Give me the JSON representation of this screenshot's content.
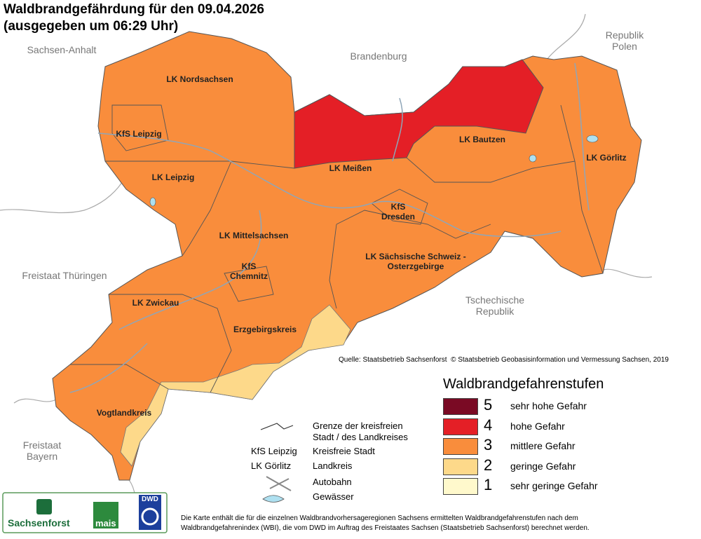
{
  "header": {
    "title": "Waldbrandgefährdung  für den  09.04.2026",
    "subtitle": "(ausgegeben um 06:29 Uhr)"
  },
  "neighbors": [
    "Sachsen-Anhalt",
    "Brandenburg",
    "Republik\nPolen",
    "Freistaat Thüringen",
    "Tschechische\nRepublik",
    "Freistaat\nBayern"
  ],
  "regions": [
    "LK Nordsachsen",
    "KfS Leipzig",
    "LK Leipzig",
    "LK Meißen",
    "LK Bautzen",
    "LK Görlitz",
    "KfS\nDresden",
    "LK Mittelsachsen",
    "LK Sächsische Schweiz -\nOsterzgebirge",
    "KfS\nChemnitz",
    "LK Zwickau",
    "Erzgebirgskreis",
    "Vogtlandkreis"
  ],
  "source": "Quelle: Staatsbetrieb Sachsenforst  © Staatsbetrieb Geobasisinformation und Vermessung Sachsen, 2019",
  "legend": {
    "title": "Waldbrandgefahrenstufen",
    "items": [
      {
        "level": 5,
        "label": "sehr hohe Gefahr",
        "color": "#7a0a24"
      },
      {
        "level": 4,
        "label": "hohe Gefahr",
        "color": "#e41f26"
      },
      {
        "level": 3,
        "label": "mittlere Gefahr",
        "color": "#f98d3c"
      },
      {
        "level": 2,
        "label": "geringe Gefahr",
        "color": "#fdd98a"
      },
      {
        "level": 1,
        "label": "sehr geringe Gefahr",
        "color": "#fff9cc"
      }
    ]
  },
  "key": {
    "border": "Grenze der kreisfreien\nStadt / des Landkreises",
    "city_example": "KfS Leipzig",
    "city": "Kreisfreie Stadt",
    "district_example": "LK Görlitz",
    "district": "Landkreis",
    "motorway": "Autobahn",
    "water": "Gewässer"
  },
  "logos": [
    "Sachsenforst",
    "mais",
    "DWD"
  ],
  "footnote": "Die Karte enthält die für die einzelnen Waldbrandvorhersageregionen Sachsens ermittelten Waldbrandgefahrenstufen nach dem\nWaldbrandgefahrenindex (WBI), die vom DWD im Auftrag des Freistaates Sachsen (Staatsbetrieb Sachsenforst) berechnet werden."
}
